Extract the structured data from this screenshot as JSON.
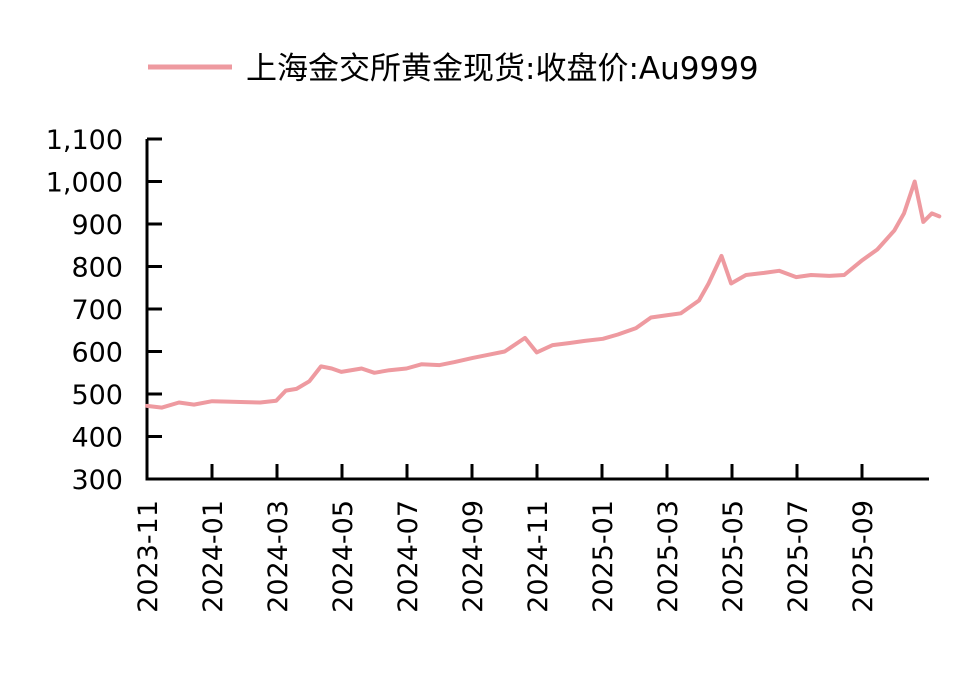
{
  "chart_data": {
    "type": "line",
    "title": "",
    "legend": [
      {
        "name": "上海金交所黄金现货:收盘价:Au9999",
        "color": "#ee9aa0"
      }
    ],
    "legend_position": "top",
    "xlabel": "",
    "ylabel": "",
    "ylim": [
      300,
      1100
    ],
    "yticks": [
      300,
      400,
      500,
      600,
      700,
      800,
      900,
      1000,
      1100
    ],
    "ytick_labels": [
      "300",
      "400",
      "500",
      "600",
      "700",
      "800",
      "900",
      "1,000",
      "1,100"
    ],
    "xtick_labels": [
      "2023-11",
      "2024-01",
      "2024-03",
      "2024-05",
      "2024-07",
      "2024-09",
      "2024-11",
      "2025-01",
      "2025-03",
      "2025-05",
      "2025-07",
      "2025-09"
    ],
    "grid": false,
    "series": [
      {
        "name": "上海金交所黄金现货:收盘价:Au9999",
        "color": "#ee9aa0",
        "x": [
          "2023-11-01",
          "2023-11-15",
          "2023-12-01",
          "2023-12-15",
          "2024-01-01",
          "2024-01-15",
          "2024-02-01",
          "2024-02-15",
          "2024-03-01",
          "2024-03-10",
          "2024-03-20",
          "2024-04-01",
          "2024-04-12",
          "2024-04-22",
          "2024-05-01",
          "2024-05-20",
          "2024-06-01",
          "2024-06-15",
          "2024-07-01",
          "2024-07-15",
          "2024-08-01",
          "2024-08-15",
          "2024-09-01",
          "2024-09-15",
          "2024-10-01",
          "2024-10-20",
          "2024-10-31",
          "2024-11-15",
          "2024-12-01",
          "2024-12-15",
          "2025-01-01",
          "2025-01-15",
          "2025-02-01",
          "2025-02-15",
          "2025-03-01",
          "2025-03-15",
          "2025-04-01",
          "2025-04-10",
          "2025-04-22",
          "2025-05-01",
          "2025-05-15",
          "2025-06-01",
          "2025-06-15",
          "2025-07-01",
          "2025-07-15",
          "2025-08-01",
          "2025-08-15",
          "2025-09-01",
          "2025-09-15",
          "2025-10-01",
          "2025-10-10",
          "2025-10-20",
          "2025-10-28",
          "2025-11-05",
          "2025-11-12"
        ],
        "values": [
          472,
          468,
          480,
          475,
          483,
          482,
          481,
          480,
          484,
          508,
          512,
          530,
          565,
          560,
          552,
          560,
          550,
          556,
          560,
          570,
          568,
          575,
          585,
          592,
          600,
          632,
          598,
          615,
          620,
          625,
          630,
          640,
          655,
          680,
          685,
          690,
          720,
          760,
          825,
          760,
          780,
          785,
          790,
          775,
          780,
          778,
          780,
          815,
          840,
          885,
          925,
          1000,
          905,
          925,
          918
        ]
      }
    ]
  },
  "legend": {
    "label": "上海金交所黄金现货:收盘价:Au9999"
  }
}
